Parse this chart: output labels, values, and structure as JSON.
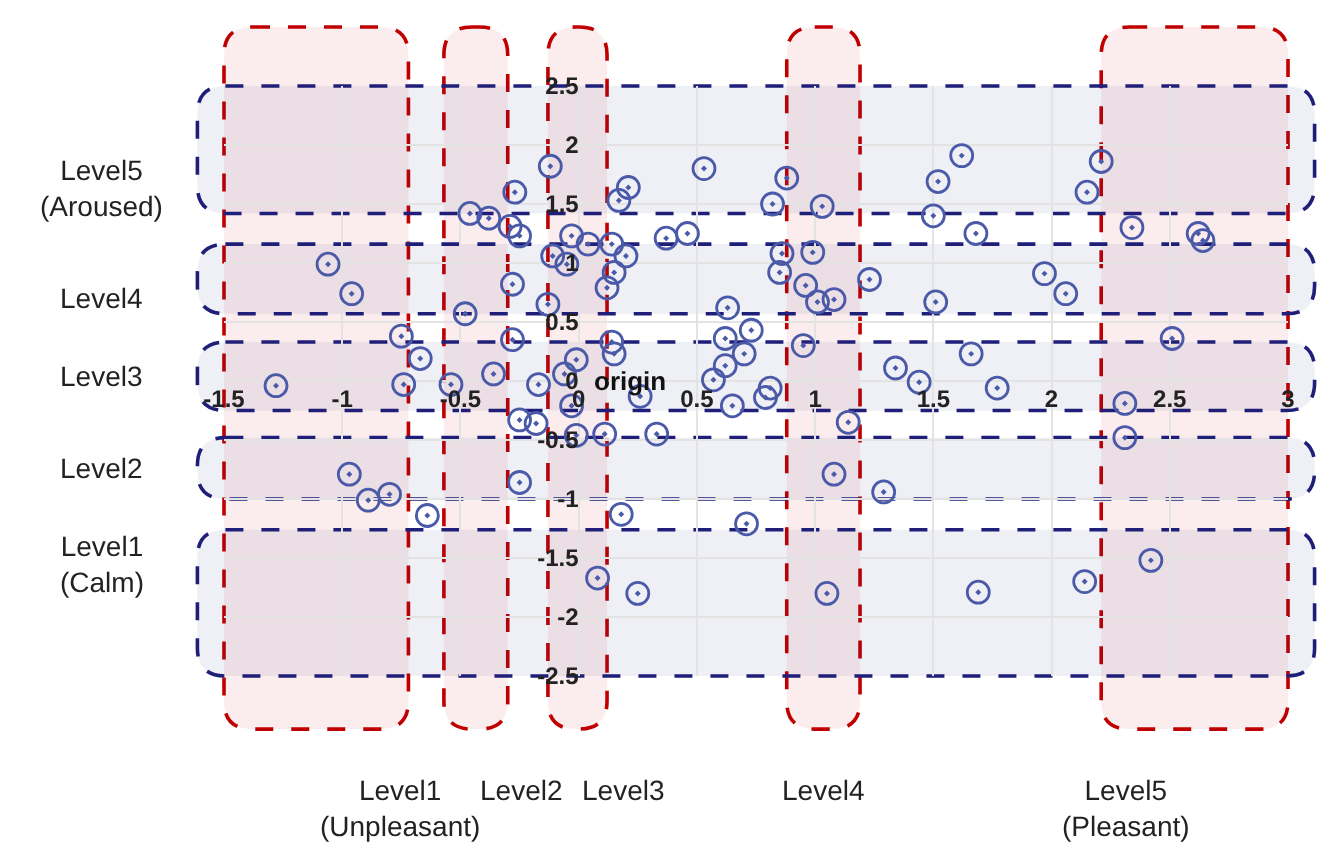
{
  "chart_data": {
    "type": "scatter",
    "color": "#4a5aa8",
    "marker": "circle",
    "grid": true,
    "xlim": [
      -1.5,
      3
    ],
    "xticks": [
      -1.5,
      -1,
      -0.5,
      0,
      0.5,
      1,
      1.5,
      2,
      2.5,
      3
    ],
    "ylim": [
      -2.5,
      2.5
    ],
    "yticks": [
      -2.5,
      -2,
      -1.5,
      -1,
      -0.5,
      0,
      0.5,
      1,
      1.5,
      2,
      2.5
    ],
    "x": [
      -0.12,
      -0.27,
      -0.46,
      -0.38,
      -0.29,
      -0.25,
      -0.03,
      -0.11,
      -0.05,
      -1.06,
      -0.96,
      -0.28,
      -0.48,
      -0.13,
      -0.28,
      -0.75,
      -0.67,
      -0.01,
      -0.06,
      -0.36,
      -1.28,
      -0.74,
      -0.54,
      -0.17,
      0.53,
      0.21,
      0.17,
      0.88,
      0.82,
      1.03,
      1.52,
      1.5,
      0.04,
      0.14,
      0.2,
      0.37,
      0.46,
      0.15,
      0.12,
      0.86,
      0.99,
      0.85,
      1.23,
      0.96,
      1.01,
      1.08,
      1.51,
      0.63,
      0.62,
      0.73,
      0.95,
      0.14,
      0.15,
      0.7,
      0.62,
      0.57,
      0.79,
      0.81,
      1.34,
      1.44,
      1.62,
      2.21,
      2.15,
      1.68,
      2.34,
      2.62,
      2.64,
      1.97,
      2.06,
      2.51,
      1.66,
      1.77,
      2.31,
      2.31,
      2.42,
      2.14,
      1.69,
      0.26,
      0.65,
      -0.03,
      -0.01,
      0.11,
      0.33,
      1.14,
      1.08,
      1.29,
      0.18,
      0.71,
      0.08,
      0.25,
      1.05,
      -0.25,
      -0.18,
      -0.25,
      -0.97,
      -0.89,
      -0.8,
      -0.64
    ],
    "values": [
      1.82,
      1.6,
      1.42,
      1.38,
      1.31,
      1.23,
      1.23,
      1.06,
      0.99,
      0.99,
      0.74,
      0.82,
      0.57,
      0.65,
      0.35,
      0.38,
      0.19,
      0.18,
      0.06,
      0.06,
      -0.04,
      -0.03,
      -0.03,
      -0.03,
      1.8,
      1.64,
      1.53,
      1.72,
      1.5,
      1.48,
      1.69,
      1.4,
      1.16,
      1.16,
      1.06,
      1.21,
      1.25,
      0.92,
      0.79,
      1.08,
      1.09,
      0.92,
      0.86,
      0.81,
      0.67,
      0.69,
      0.67,
      0.62,
      0.36,
      0.43,
      0.3,
      0.33,
      0.23,
      0.23,
      0.13,
      0.01,
      -0.14,
      -0.06,
      0.11,
      -0.01,
      1.91,
      1.86,
      1.6,
      1.25,
      1.3,
      1.25,
      1.19,
      0.91,
      0.74,
      0.36,
      0.23,
      -0.06,
      -0.19,
      -0.48,
      -1.52,
      -1.7,
      -1.79,
      -0.13,
      -0.21,
      -0.21,
      -0.46,
      -0.45,
      -0.45,
      -0.35,
      -0.79,
      -0.94,
      -1.13,
      -1.21,
      -1.67,
      -1.8,
      -1.8,
      -0.33,
      -0.36,
      -0.86,
      -0.79,
      -1.01,
      -0.96,
      -1.14
    ],
    "bands": [
      {
        "axis": "x",
        "from": -1.5,
        "to": -0.72,
        "label": "Level1\n(Unpleasant)",
        "color": "#c00000"
      },
      {
        "axis": "x",
        "from": -0.57,
        "to": -0.3,
        "label": "Level2",
        "color": "#c00000"
      },
      {
        "axis": "x",
        "from": -0.13,
        "to": 0.12,
        "label": "Level3",
        "color": "#c00000"
      },
      {
        "axis": "x",
        "from": 0.88,
        "to": 1.19,
        "label": "Level4",
        "color": "#c00000"
      },
      {
        "axis": "x",
        "from": 2.21,
        "to": 3,
        "label": "Level5\n(Pleasant)",
        "color": "#c00000"
      },
      {
        "axis": "y",
        "from": 1.42,
        "to": 2.5,
        "label": "Level5\n(Aroused)",
        "color": "#1f1f7a"
      },
      {
        "axis": "y",
        "from": 0.57,
        "to": 1.16,
        "label": "Level4",
        "color": "#1f1f7a"
      },
      {
        "axis": "y",
        "from": -0.25,
        "to": 0.33,
        "label": "Level3",
        "color": "#1f1f7a"
      },
      {
        "axis": "y",
        "from": -1,
        "to": -0.48,
        "label": "Level2",
        "color": "#1f1f7a"
      },
      {
        "axis": "y",
        "from": -2.5,
        "to": -1.26,
        "label": "Level1\n(Calm)",
        "color": "#1f1f7a"
      }
    ],
    "annotations": [
      {
        "text": "origin",
        "x": 0,
        "y": 0
      }
    ]
  }
}
